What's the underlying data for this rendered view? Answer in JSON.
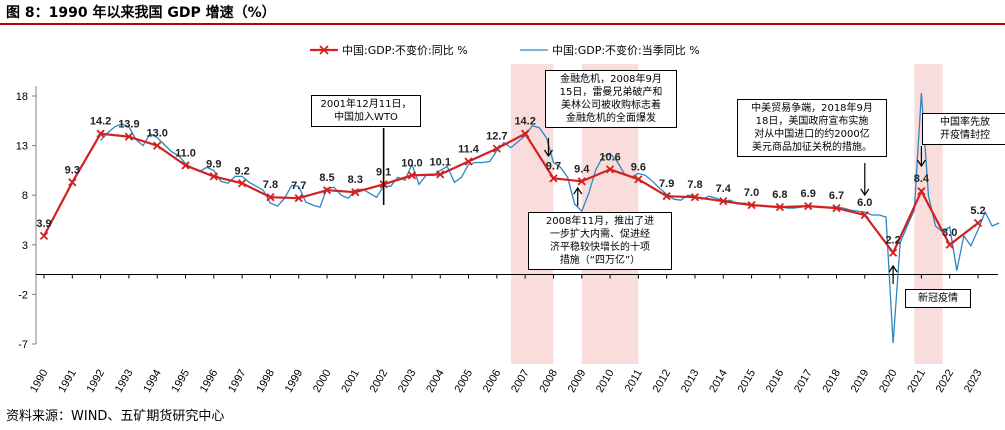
{
  "title": "图 8：1990 年以来我国 GDP 增速（%）",
  "source": "资料来源：WIND、五矿期货研究中心",
  "chart_data": {
    "type": "line",
    "x_ticks": [
      "1990",
      "1991",
      "1992",
      "1993",
      "1994",
      "1995",
      "1996",
      "1997",
      "1998",
      "1999",
      "2000",
      "2001",
      "2002",
      "2003",
      "2004",
      "2005",
      "2006",
      "2007",
      "2008",
      "2009",
      "2010",
      "2011",
      "2012",
      "2013",
      "2014",
      "2015",
      "2016",
      "2017",
      "2018",
      "2019",
      "2020",
      "2021",
      "2022",
      "2023"
    ],
    "y_ticks": [
      -7,
      -2,
      3,
      8,
      13,
      18
    ],
    "ylim": [
      -7,
      20
    ],
    "grid": false,
    "legend_position": "top",
    "series": [
      {
        "name": "中国:GDP:不变价:同比 %",
        "color": "#d32020",
        "marker": "x",
        "x": [
          1990,
          1991,
          1992,
          1993,
          1994,
          1995,
          1996,
          1997,
          1998,
          1999,
          2000,
          2001,
          2002,
          2003,
          2004,
          2005,
          2006,
          2007,
          2008,
          2009,
          2010,
          2011,
          2012,
          2013,
          2014,
          2015,
          2016,
          2017,
          2018,
          2019,
          2020,
          2021,
          2022,
          2023
        ],
        "values": [
          3.9,
          9.3,
          14.2,
          13.9,
          13.0,
          11.0,
          9.9,
          9.2,
          7.8,
          7.7,
          8.5,
          8.3,
          9.1,
          10.0,
          10.1,
          11.4,
          12.7,
          14.2,
          9.7,
          9.4,
          10.6,
          9.6,
          7.9,
          7.8,
          7.4,
          7.0,
          6.8,
          6.9,
          6.7,
          6.0,
          2.2,
          8.4,
          3.0,
          5.2
        ],
        "labels": [
          "3.9",
          "9.3",
          "14.2",
          "13.9",
          "13.0",
          "11.0",
          "9.9",
          "9.2",
          "7.8",
          "7.7",
          "8.5",
          "8.3",
          "9.1",
          "10.0",
          "10.1",
          "11.4",
          "12.7",
          "14.2",
          "9.7",
          "9.4",
          "10.6",
          "9.6",
          "7.9",
          "7.8",
          "7.4",
          "7.0",
          "6.8",
          "6.9",
          "6.7",
          "6.0",
          "2.2",
          "8.4",
          "3.0",
          "5.2"
        ]
      },
      {
        "name": "中国:GDP:不变价:当季同比 %",
        "color": "#2e86c1",
        "marker": "none",
        "x": [
          1992.0,
          1992.25,
          1992.5,
          1992.75,
          1993.0,
          1993.25,
          1993.5,
          1993.75,
          1994.0,
          1994.25,
          1994.5,
          1994.75,
          1995.0,
          1995.25,
          1995.5,
          1995.75,
          1996.0,
          1996.25,
          1996.5,
          1996.75,
          1997.0,
          1997.25,
          1997.5,
          1997.75,
          1998.0,
          1998.25,
          1998.5,
          1998.75,
          1999.0,
          1999.25,
          1999.5,
          1999.75,
          2000.0,
          2000.25,
          2000.5,
          2000.75,
          2001.0,
          2001.25,
          2001.5,
          2001.75,
          2002.0,
          2002.25,
          2002.5,
          2002.75,
          2003.0,
          2003.25,
          2003.5,
          2003.75,
          2004.0,
          2004.25,
          2004.5,
          2004.75,
          2005.0,
          2005.25,
          2005.5,
          2005.75,
          2006.0,
          2006.25,
          2006.5,
          2006.75,
          2007.0,
          2007.25,
          2007.5,
          2007.75,
          2008.0,
          2008.25,
          2008.5,
          2008.75,
          2009.0,
          2009.25,
          2009.5,
          2009.75,
          2010.0,
          2010.25,
          2010.5,
          2010.75,
          2011.0,
          2011.25,
          2011.5,
          2011.75,
          2012.0,
          2012.25,
          2012.5,
          2012.75,
          2013.0,
          2013.25,
          2013.5,
          2013.75,
          2014.0,
          2014.25,
          2014.5,
          2014.75,
          2015.0,
          2015.25,
          2015.5,
          2015.75,
          2016.0,
          2016.25,
          2016.5,
          2016.75,
          2017.0,
          2017.25,
          2017.5,
          2017.75,
          2018.0,
          2018.25,
          2018.5,
          2018.75,
          2019.0,
          2019.25,
          2019.5,
          2019.75,
          2020.0,
          2020.25,
          2020.5,
          2020.75,
          2021.0,
          2021.25,
          2021.5,
          2021.75,
          2022.0,
          2022.25,
          2022.5,
          2022.75,
          2023.0,
          2023.25,
          2023.5,
          2023.75
        ],
        "values": [
          13.5,
          14.3,
          14.9,
          15.2,
          14.9,
          13.6,
          13.0,
          14.2,
          13.8,
          13.1,
          12.4,
          12.0,
          11.2,
          10.7,
          10.4,
          10.8,
          10.5,
          9.4,
          9.2,
          9.9,
          9.9,
          9.3,
          8.9,
          8.5,
          7.2,
          6.9,
          7.7,
          9.0,
          8.9,
          7.3,
          7.0,
          6.8,
          8.7,
          8.8,
          8.0,
          7.7,
          8.5,
          8.6,
          8.2,
          7.8,
          8.9,
          8.9,
          9.8,
          9.5,
          11.1,
          9.1,
          10.0,
          10.0,
          10.5,
          10.9,
          9.3,
          9.8,
          11.1,
          11.3,
          11.3,
          11.4,
          12.5,
          13.3,
          12.8,
          13.4,
          14.0,
          15.0,
          14.8,
          13.8,
          11.3,
          10.8,
          9.8,
          7.1,
          6.4,
          8.2,
          10.6,
          11.9,
          12.2,
          11.4,
          10.2,
          9.8,
          10.2,
          10.0,
          9.4,
          8.7,
          8.1,
          7.6,
          7.5,
          8.0,
          7.9,
          7.6,
          7.9,
          7.7,
          7.4,
          7.5,
          7.1,
          7.2,
          7.0,
          7.0,
          6.9,
          6.8,
          6.9,
          6.7,
          6.7,
          6.8,
          6.9,
          6.9,
          6.8,
          6.8,
          6.8,
          6.7,
          6.5,
          6.4,
          6.3,
          6.0,
          6.0,
          5.8,
          -6.9,
          3.2,
          4.9,
          6.5,
          18.3,
          7.9,
          4.9,
          4.3,
          4.8,
          0.4,
          3.9,
          2.9,
          4.5,
          6.3,
          4.9,
          5.2
        ]
      }
    ],
    "shaded_periods": [
      [
        2006.5,
        2008.0
      ],
      [
        2009.0,
        2011.0
      ],
      [
        2020.75,
        2021.75
      ]
    ],
    "annotations": [
      {
        "text": "2001年12月11日，\n中国加入WTO",
        "x": 2002,
        "arrow": "down"
      },
      {
        "text": "金融危机，2008年9月\n15日，雷曼兄弟破产和\n美林公司被收购标志着\n金融危机的全面爆发",
        "x": 2008.0,
        "arrow": "down"
      },
      {
        "text": "2008年11月，推出了进\n一步扩大内需、促进经\n济平稳较快增长的十项\n措施（“四万亿”）",
        "x": 2009.0,
        "arrow": "up"
      },
      {
        "text": "中美贸易争端，2018年9月\n18日，美国政府宣布实施\n对从中国进口的约2000亿\n美元商品加征关税的措施。",
        "x": 2019.0,
        "arrow": "down"
      },
      {
        "text": "新冠疫情",
        "x": 2020.0,
        "arrow": "up"
      },
      {
        "text": "中国率先放\n开疫情封控",
        "x": 2021.0,
        "arrow": "down"
      }
    ]
  }
}
